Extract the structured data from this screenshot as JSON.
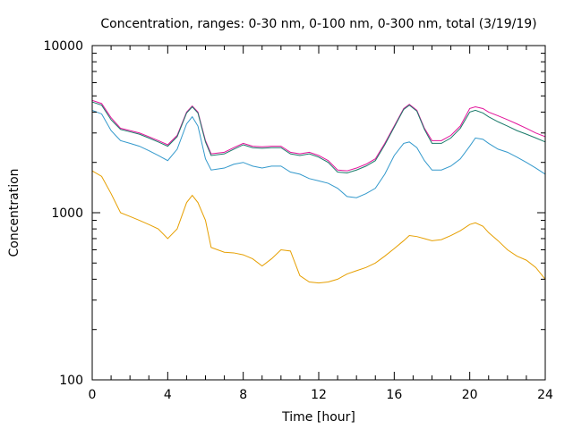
{
  "chart_data": {
    "type": "line",
    "title": "Concentration, ranges: 0-30 nm, 0-100 nm, 0-300 nm, total (3/19/19)",
    "xlabel": "Time [hour]",
    "ylabel": "Concentration",
    "xlim": [
      0,
      24
    ],
    "ylim": [
      100,
      10000
    ],
    "yscale": "log",
    "grid": false,
    "legend": "none",
    "x_ticks": [
      0,
      4,
      8,
      12,
      16,
      20,
      24
    ],
    "x_tick_labels": [
      "0",
      "4",
      "8",
      "12",
      "16",
      "20",
      "24"
    ],
    "y_ticks": [
      100,
      1000,
      10000
    ],
    "y_tick_labels": [
      "100",
      "1000",
      "10000"
    ],
    "x": [
      0,
      0.5,
      1,
      1.5,
      2,
      2.5,
      3,
      3.5,
      4,
      4.5,
      5,
      5.3,
      5.6,
      6,
      6.3,
      7,
      7.5,
      8,
      8.5,
      9,
      9.5,
      10,
      10.5,
      11,
      11.5,
      12,
      12.5,
      13,
      13.5,
      14,
      14.5,
      15,
      15.5,
      16,
      16.5,
      16.8,
      17.2,
      17.6,
      18,
      18.5,
      19,
      19.5,
      20,
      20.3,
      20.7,
      21,
      21.5,
      22,
      22.5,
      23,
      23.5,
      24
    ],
    "series": [
      {
        "color": "#e2139a",
        "values": [
          4700,
          4500,
          3700,
          3200,
          3100,
          3000,
          2850,
          2700,
          2550,
          2900,
          4000,
          4350,
          4000,
          2700,
          2250,
          2300,
          2450,
          2600,
          2500,
          2480,
          2500,
          2500,
          2300,
          2250,
          2300,
          2200,
          2050,
          1800,
          1780,
          1850,
          1950,
          2100,
          2600,
          3300,
          4200,
          4450,
          4100,
          3200,
          2700,
          2700,
          2900,
          3300,
          4200,
          4300,
          4200,
          4000,
          3800,
          3600,
          3400,
          3200,
          3000,
          2850
        ]
      },
      {
        "color": "#1a7a6a",
        "values": [
          4600,
          4400,
          3600,
          3150,
          3050,
          2950,
          2800,
          2650,
          2500,
          2850,
          3950,
          4300,
          3950,
          2650,
          2200,
          2250,
          2400,
          2550,
          2450,
          2430,
          2450,
          2450,
          2250,
          2200,
          2250,
          2150,
          2000,
          1750,
          1730,
          1800,
          1900,
          2050,
          2550,
          3250,
          4150,
          4400,
          4050,
          3150,
          2600,
          2600,
          2800,
          3200,
          4000,
          4100,
          3950,
          3750,
          3500,
          3300,
          3100,
          2950,
          2800,
          2650
        ]
      },
      {
        "color": "#3399cc",
        "values": [
          4100,
          3900,
          3100,
          2700,
          2600,
          2500,
          2350,
          2200,
          2050,
          2400,
          3400,
          3750,
          3300,
          2100,
          1800,
          1850,
          1950,
          2000,
          1900,
          1850,
          1900,
          1900,
          1750,
          1700,
          1600,
          1550,
          1500,
          1400,
          1250,
          1230,
          1300,
          1400,
          1700,
          2200,
          2600,
          2650,
          2450,
          2050,
          1800,
          1800,
          1900,
          2100,
          2500,
          2800,
          2750,
          2600,
          2400,
          2300,
          2150,
          2000,
          1850,
          1700
        ]
      },
      {
        "color": "#e69f00",
        "values": [
          1780,
          1650,
          1300,
          1000,
          950,
          900,
          850,
          800,
          700,
          800,
          1150,
          1270,
          1150,
          900,
          620,
          580,
          575,
          560,
          530,
          480,
          530,
          600,
          590,
          420,
          385,
          380,
          385,
          400,
          430,
          450,
          470,
          500,
          550,
          610,
          680,
          730,
          720,
          700,
          680,
          690,
          730,
          780,
          850,
          870,
          830,
          760,
          680,
          600,
          550,
          520,
          470,
          400
        ]
      }
    ]
  }
}
